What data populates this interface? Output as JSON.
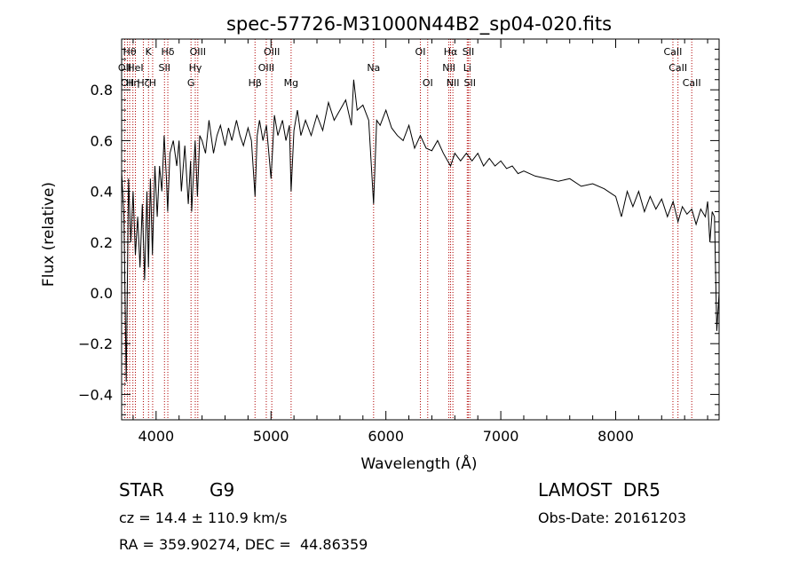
{
  "chart_data": {
    "type": "line",
    "title": "spec-57726-M31000N44B2_sp04-020.fits",
    "xlabel": "Wavelength (Å)",
    "ylabel": "Flux (relative)",
    "xlim": [
      3700,
      8900
    ],
    "ylim": [
      -0.5,
      1.0
    ],
    "xticks": [
      4000,
      5000,
      6000,
      7000,
      8000
    ],
    "yticks": [
      -0.4,
      -0.2,
      0.0,
      0.2,
      0.4,
      0.6,
      0.8
    ],
    "xtick_labels": [
      "4000",
      "5000",
      "6000",
      "7000",
      "8000"
    ],
    "ytick_labels": [
      "−0.4",
      "−0.2",
      "0.0",
      "0.2",
      "0.4",
      "0.6",
      "0.8"
    ],
    "grid": false,
    "legend": "none",
    "series": [
      {
        "x": [
          3700,
          3720,
          3740,
          3760,
          3780,
          3800,
          3820,
          3840,
          3860,
          3880,
          3900,
          3920,
          3933,
          3950,
          3968,
          3990,
          4010,
          4030,
          4050,
          4070,
          4090,
          4101,
          4120,
          4150,
          4180,
          4200,
          4220,
          4250,
          4280,
          4300,
          4310,
          4340,
          4360,
          4380,
          4400,
          4430,
          4460,
          4500,
          4530,
          4560,
          4600,
          4630,
          4660,
          4700,
          4730,
          4760,
          4800,
          4830,
          4861,
          4880,
          4900,
          4930,
          4960,
          5000,
          5030,
          5060,
          5100,
          5130,
          5160,
          5175,
          5200,
          5230,
          5260,
          5300,
          5350,
          5400,
          5450,
          5500,
          5550,
          5600,
          5650,
          5700,
          5720,
          5750,
          5800,
          5850,
          5893,
          5920,
          5950,
          6000,
          6050,
          6100,
          6150,
          6200,
          6250,
          6300,
          6350,
          6400,
          6450,
          6500,
          6563,
          6600,
          6650,
          6700,
          6750,
          6800,
          6850,
          6900,
          6950,
          7000,
          7050,
          7100,
          7150,
          7200,
          7300,
          7400,
          7500,
          7600,
          7700,
          7800,
          7900,
          8000,
          8050,
          8100,
          8150,
          8200,
          8250,
          8300,
          8350,
          8400,
          8450,
          8500,
          8542,
          8580,
          8620,
          8662,
          8700,
          8740,
          8780,
          8800,
          8820,
          8840,
          8860,
          8880,
          8900
        ],
        "y": [
          0.48,
          0.3,
          -0.35,
          0.45,
          0.2,
          0.4,
          0.15,
          0.3,
          0.1,
          0.35,
          0.05,
          0.4,
          0.1,
          0.45,
          0.15,
          0.5,
          0.3,
          0.5,
          0.4,
          0.62,
          0.45,
          0.32,
          0.55,
          0.6,
          0.5,
          0.6,
          0.4,
          0.58,
          0.35,
          0.52,
          0.32,
          0.6,
          0.38,
          0.62,
          0.6,
          0.55,
          0.68,
          0.55,
          0.62,
          0.66,
          0.58,
          0.65,
          0.6,
          0.68,
          0.62,
          0.58,
          0.65,
          0.6,
          0.38,
          0.62,
          0.68,
          0.6,
          0.66,
          0.45,
          0.7,
          0.62,
          0.68,
          0.6,
          0.66,
          0.4,
          0.64,
          0.72,
          0.62,
          0.68,
          0.62,
          0.7,
          0.64,
          0.75,
          0.68,
          0.72,
          0.76,
          0.66,
          0.84,
          0.72,
          0.74,
          0.68,
          0.35,
          0.68,
          0.66,
          0.72,
          0.65,
          0.62,
          0.6,
          0.66,
          0.57,
          0.62,
          0.57,
          0.56,
          0.6,
          0.55,
          0.5,
          0.55,
          0.52,
          0.55,
          0.52,
          0.55,
          0.5,
          0.53,
          0.5,
          0.52,
          0.49,
          0.5,
          0.47,
          0.48,
          0.46,
          0.45,
          0.44,
          0.45,
          0.42,
          0.43,
          0.41,
          0.38,
          0.3,
          0.4,
          0.34,
          0.4,
          0.32,
          0.38,
          0.33,
          0.37,
          0.3,
          0.36,
          0.28,
          0.34,
          0.31,
          0.33,
          0.27,
          0.33,
          0.3,
          0.36,
          0.2,
          0.32,
          0.3,
          -0.15,
          0.0
        ]
      }
    ],
    "line_markers": [
      {
        "wavelength": 3727,
        "labels": [
          "OII"
        ],
        "row": 1
      },
      {
        "wavelength": 3750,
        "labels": [
          "OII"
        ],
        "row": 2
      },
      {
        "wavelength": 3770,
        "labels": [
          "Hθ"
        ],
        "row": 0
      },
      {
        "wavelength": 3798,
        "labels": [
          "Hη"
        ],
        "row": 2
      },
      {
        "wavelength": 3820,
        "labels": [
          "HeI"
        ],
        "row": 1
      },
      {
        "wavelength": 3889,
        "labels": [
          "Hζ"
        ],
        "row": 2
      },
      {
        "wavelength": 3934,
        "labels": [
          "K"
        ],
        "row": 0
      },
      {
        "wavelength": 3970,
        "labels": [
          "H"
        ],
        "row": 2
      },
      {
        "wavelength": 4073,
        "labels": [
          "SII"
        ],
        "row": 1
      },
      {
        "wavelength": 4102,
        "labels": [
          "Hδ"
        ],
        "row": 0
      },
      {
        "wavelength": 4304,
        "labels": [
          "G"
        ],
        "row": 2
      },
      {
        "wavelength": 4341,
        "labels": [
          "Hγ"
        ],
        "row": 1
      },
      {
        "wavelength": 4363,
        "labels": [
          "OIII"
        ],
        "row": 0
      },
      {
        "wavelength": 4861,
        "labels": [
          "Hβ"
        ],
        "row": 2
      },
      {
        "wavelength": 4959,
        "labels": [
          "OIII"
        ],
        "row": 1
      },
      {
        "wavelength": 5007,
        "labels": [
          "OIII"
        ],
        "row": 0
      },
      {
        "wavelength": 5175,
        "labels": [
          "Mg"
        ],
        "row": 2
      },
      {
        "wavelength": 5893,
        "labels": [
          "Na"
        ],
        "row": 1
      },
      {
        "wavelength": 6300,
        "labels": [
          "OI"
        ],
        "row": 0
      },
      {
        "wavelength": 6364,
        "labels": [
          "OI"
        ],
        "row": 2
      },
      {
        "wavelength": 6548,
        "labels": [
          "NII"
        ],
        "row": 1
      },
      {
        "wavelength": 6563,
        "labels": [
          "Hα"
        ],
        "row": 0
      },
      {
        "wavelength": 6583,
        "labels": [
          "NII"
        ],
        "row": 2
      },
      {
        "wavelength": 6708,
        "labels": [
          "Li"
        ],
        "row": 1
      },
      {
        "wavelength": 6717,
        "labels": [
          "SII"
        ],
        "row": 0
      },
      {
        "wavelength": 6731,
        "labels": [
          "SII"
        ],
        "row": 2
      },
      {
        "wavelength": 8498,
        "labels": [
          "CaII"
        ],
        "row": 0
      },
      {
        "wavelength": 8542,
        "labels": [
          "CaII"
        ],
        "row": 1
      },
      {
        "wavelength": 8662,
        "labels": [
          "CaII"
        ],
        "row": 2
      }
    ],
    "line_color": "#000000",
    "marker_color": "#b00000"
  },
  "info": {
    "class": "STAR",
    "subclass": "G9",
    "survey": "LAMOST  DR5",
    "cz": "cz = 14.4 ± 110.9 km/s",
    "obs_date": "Obs-Date: 20161203",
    "coords": "RA = 359.90274, DEC =  44.86359"
  }
}
